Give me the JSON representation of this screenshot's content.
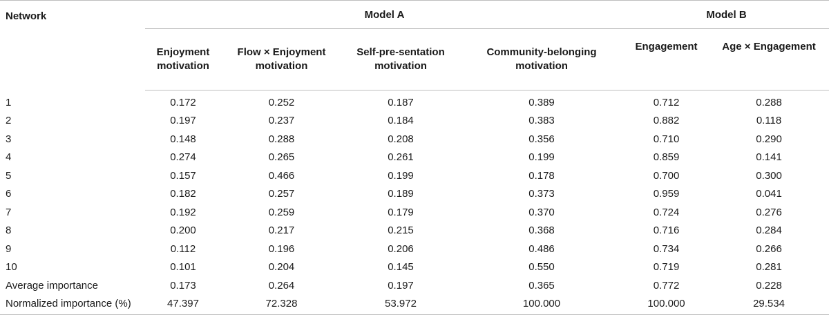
{
  "table": {
    "network_header": "Network",
    "model_a": "Model A",
    "model_b": "Model B",
    "columns": [
      [
        "Enjoyment",
        "motivation"
      ],
      [
        "Flow × Enjoyment",
        "motivation"
      ],
      [
        "Self-pre-sentation",
        "motivation"
      ],
      [
        "Community-belonging",
        "motivation"
      ],
      [
        "Engagement",
        ""
      ],
      [
        "Age × Engagement",
        ""
      ]
    ],
    "rows": [
      {
        "label": "1",
        "values": [
          "0.172",
          "0.252",
          "0.187",
          "0.389",
          "0.712",
          "0.288"
        ]
      },
      {
        "label": "2",
        "values": [
          "0.197",
          "0.237",
          "0.184",
          "0.383",
          "0.882",
          "0.118"
        ]
      },
      {
        "label": "3",
        "values": [
          "0.148",
          "0.288",
          "0.208",
          "0.356",
          "0.710",
          "0.290"
        ]
      },
      {
        "label": "4",
        "values": [
          "0.274",
          "0.265",
          "0.261",
          "0.199",
          "0.859",
          "0.141"
        ]
      },
      {
        "label": "5",
        "values": [
          "0.157",
          "0.466",
          "0.199",
          "0.178",
          "0.700",
          "0.300"
        ]
      },
      {
        "label": "6",
        "values": [
          "0.182",
          "0.257",
          "0.189",
          "0.373",
          "0.959",
          "0.041"
        ]
      },
      {
        "label": "7",
        "values": [
          "0.192",
          "0.259",
          "0.179",
          "0.370",
          "0.724",
          "0.276"
        ]
      },
      {
        "label": "8",
        "values": [
          "0.200",
          "0.217",
          "0.215",
          "0.368",
          "0.716",
          "0.284"
        ]
      },
      {
        "label": "9",
        "values": [
          "0.112",
          "0.196",
          "0.206",
          "0.486",
          "0.734",
          "0.266"
        ]
      },
      {
        "label": "10",
        "values": [
          "0.101",
          "0.204",
          "0.145",
          "0.550",
          "0.719",
          "0.281"
        ]
      },
      {
        "label": "Average importance",
        "values": [
          "0.173",
          "0.264",
          "0.197",
          "0.365",
          "0.772",
          "0.228"
        ]
      },
      {
        "label": "Normalized importance (%)",
        "values": [
          "47.397",
          "72.328",
          "53.972",
          "100.000",
          "100.000",
          "29.534"
        ]
      }
    ]
  }
}
